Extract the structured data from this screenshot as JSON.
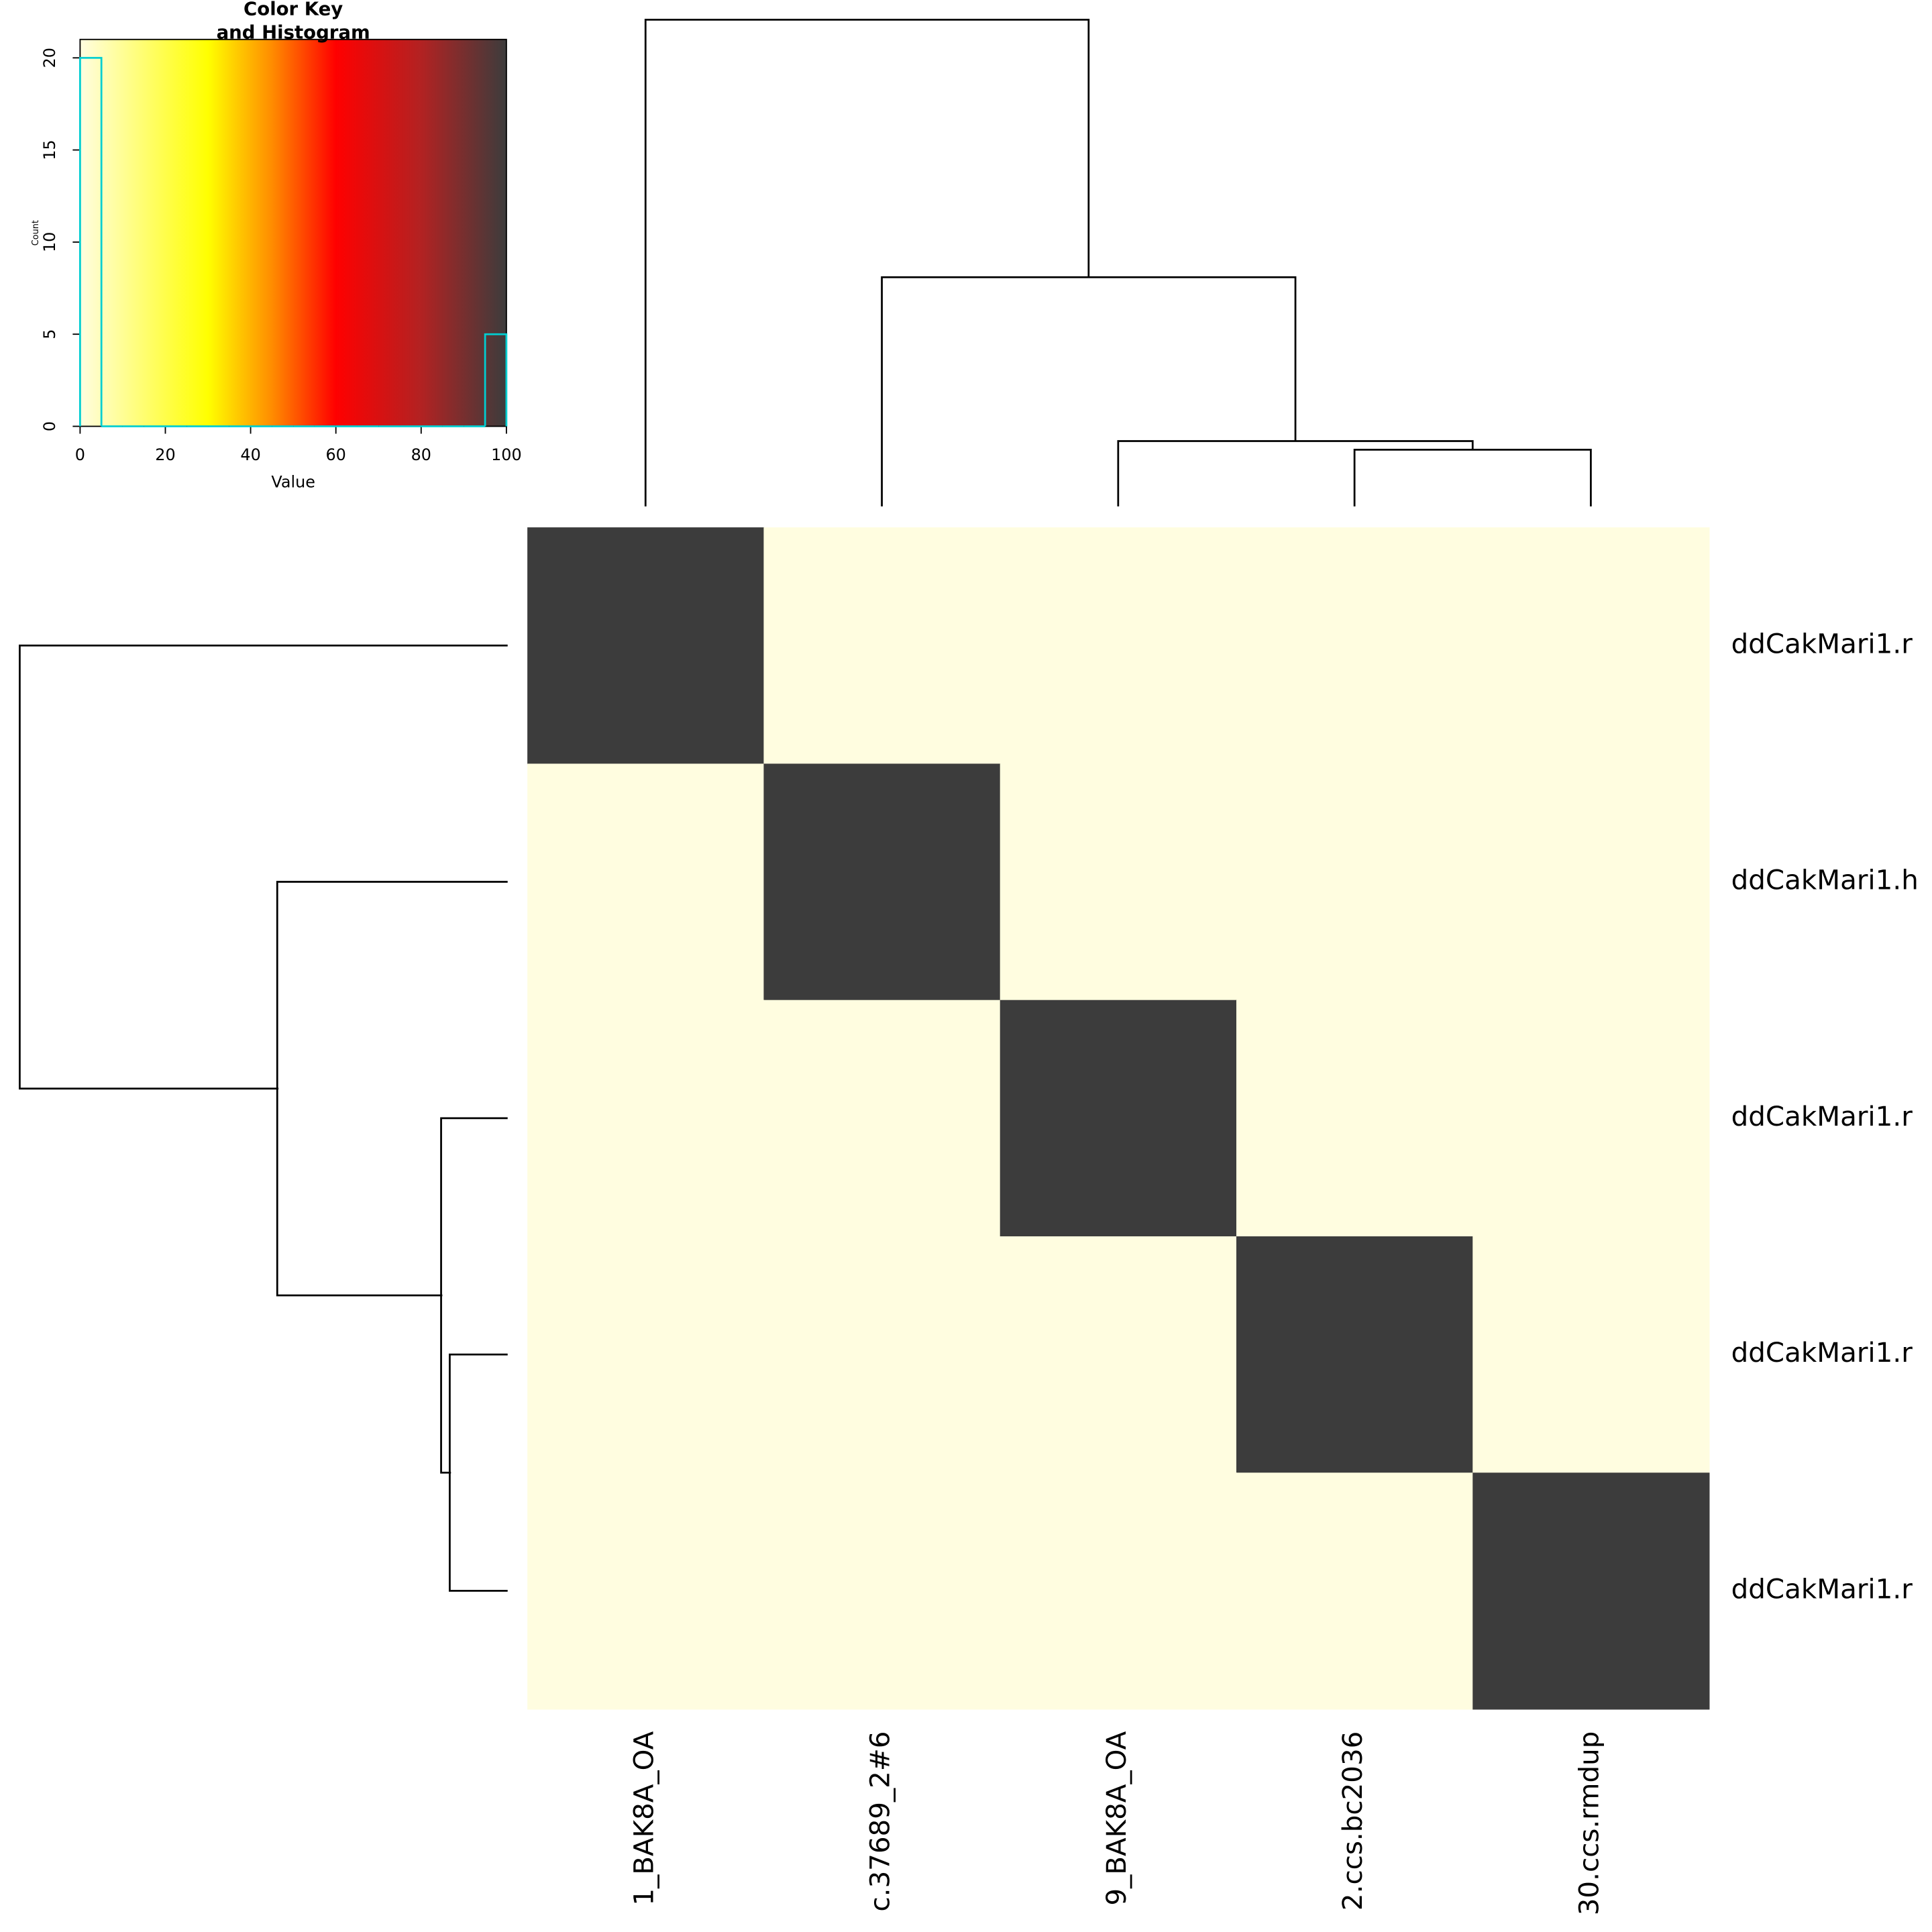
{
  "chart_data": {
    "type": "heatmap",
    "rows": [
      "ddCakMari1.r",
      "ddCakMari1.h",
      "ddCakMari1.r",
      "ddCakMari1.r",
      "ddCakMari1.r"
    ],
    "columns": [
      "1_BAK8A_OA",
      "c.37689_2#6",
      "9_BAK8A_OA",
      "2.ccs.bc2036",
      "30.ccs.rmdup"
    ],
    "values": [
      [
        100,
        0,
        0,
        0,
        0
      ],
      [
        0,
        100,
        0,
        0,
        0
      ],
      [
        0,
        0,
        100,
        0,
        0
      ],
      [
        0,
        0,
        0,
        100,
        0
      ],
      [
        0,
        0,
        0,
        0,
        100
      ]
    ],
    "colorscale": [
      [
        0,
        "#fffde0"
      ],
      [
        30,
        "#ffff00"
      ],
      [
        45,
        "#ff8c00"
      ],
      [
        60,
        "#ff0000"
      ],
      [
        80,
        "#b22222"
      ],
      [
        100,
        "#3c3c3c"
      ]
    ],
    "color_key": {
      "title": [
        "Color Key",
        "and Histogram"
      ],
      "x_label": "Value",
      "y_label": "Count",
      "xlim": [
        0,
        100
      ],
      "xticks": [
        0,
        20,
        40,
        60,
        80,
        100
      ],
      "ylim": [
        0,
        21
      ],
      "yticks": [
        0,
        5,
        10,
        15,
        20
      ],
      "histogram_color": "#00ced1",
      "bins": [
        0,
        5,
        10,
        15,
        20,
        25,
        30,
        35,
        40,
        45,
        50,
        55,
        60,
        65,
        70,
        75,
        80,
        85,
        90,
        95,
        100
      ],
      "counts": [
        20,
        0,
        0,
        0,
        0,
        0,
        0,
        0,
        0,
        0,
        0,
        0,
        0,
        0,
        0,
        0,
        0,
        0,
        0,
        5
      ]
    }
  }
}
